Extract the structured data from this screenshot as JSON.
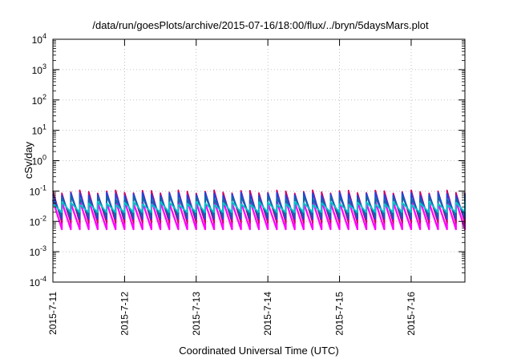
{
  "chart_data": {
    "type": "line",
    "title": "/data/run/goesPlots/archive/2015-07-16/18:00/flux/../bryn/5daysMars.plot",
    "xlabel": "Coordinated Universal Time (UTC)",
    "ylabel": "cSv/day",
    "y_scale": "log",
    "ylim": [
      0.0001,
      10000
    ],
    "y_ticks": [
      {
        "base": "10",
        "exp": "-4",
        "value": 0.0001
      },
      {
        "base": "10",
        "exp": "-3",
        "value": 0.001
      },
      {
        "base": "10",
        "exp": "-2",
        "value": 0.01
      },
      {
        "base": "10",
        "exp": "-1",
        "value": 0.1
      },
      {
        "base": "10",
        "exp": "0",
        "value": 1
      },
      {
        "base": "10",
        "exp": "1",
        "value": 10
      },
      {
        "base": "10",
        "exp": "2",
        "value": 100
      },
      {
        "base": "10",
        "exp": "3",
        "value": 1000
      },
      {
        "base": "10",
        "exp": "4",
        "value": 10000
      }
    ],
    "xlim": [
      "2015-07-11T00:00",
      "2015-07-16T18:00"
    ],
    "x_ticks": [
      "2015-7-11",
      "2015-7-12",
      "2015-7-13",
      "2015-7-14",
      "2015-7-15",
      "2015-7-16"
    ],
    "grid": true,
    "sawtooth_period_hours": 3,
    "series": [
      {
        "color": "#ff00ff",
        "peak": 0.045,
        "trough": 0.0055
      },
      {
        "color": "#cc0066",
        "peak": 0.095,
        "trough": 0.009
      },
      {
        "color": "#2244dd",
        "peak": 0.08,
        "trough": 0.012
      },
      {
        "color": "#1166aa",
        "peak": 0.06,
        "trough": 0.015
      },
      {
        "color": "#00c8c8",
        "peak": 0.04,
        "trough": 0.02
      }
    ]
  }
}
